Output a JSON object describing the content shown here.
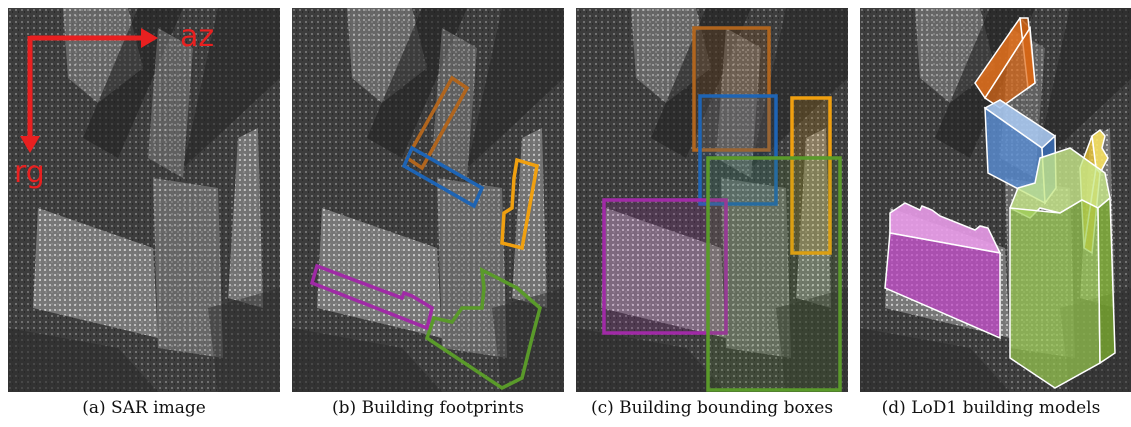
{
  "panels": [
    {
      "caption": "(a) SAR image"
    },
    {
      "caption": "(b) Building footprints"
    },
    {
      "caption": "(c) Building bounding boxes"
    },
    {
      "caption": "(d) LoD1 building models"
    }
  ],
  "axes": {
    "azimuth_label": "az",
    "range_label": "rg",
    "arrow_color": "#e82020"
  },
  "colors": {
    "brown": "#b0651e",
    "blue": "#1e64b4",
    "orange": "#f0a010",
    "purple": "#a02aa6",
    "green": "#5a9a2a"
  }
}
